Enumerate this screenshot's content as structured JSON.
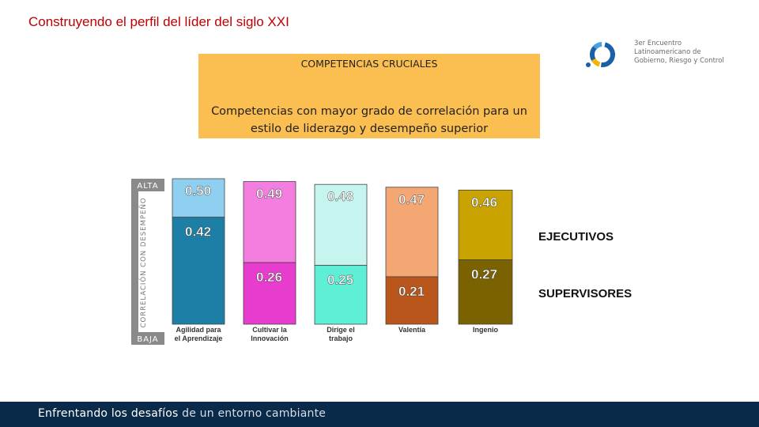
{
  "page": {
    "title": "Construyendo el perfil del líder del siglo XXI",
    "logo": {
      "lines": [
        "3er Encuentro",
        "Latinoamericano de",
        "Gobierno, Riesgo y Control"
      ]
    },
    "banner": {
      "heading": "COMPETENCIAS CRUCIALES",
      "body": "Competencias con mayor grado de correlación para un estilo de liderazgo y desempeño superior"
    },
    "footer": {
      "bold": "Enfrentando los desafíos",
      "light": " de un entorno cambiante"
    }
  },
  "chart_data": {
    "type": "bar",
    "axis": {
      "label": "CORRELACIÓN CON DESEMPEÑO",
      "top": "ALTA",
      "bottom": "BAJA"
    },
    "categories": [
      {
        "label": [
          "Agilidad para",
          "el Aprendizaje"
        ],
        "executive": 0.5,
        "supervisor": 0.42,
        "colors": {
          "executive": "#8fd0f0",
          "supervisor": "#1e7fa6"
        }
      },
      {
        "label": [
          "Cultivar la",
          "Innovación"
        ],
        "executive": 0.49,
        "supervisor": 0.26,
        "colors": {
          "executive": "#f47ee0",
          "supervisor": "#e83ccf"
        }
      },
      {
        "label": [
          "Dirige el",
          "trabajo"
        ],
        "executive": 0.48,
        "supervisor": 0.25,
        "colors": {
          "executive": "#c5f5ee",
          "supervisor": "#5fefd6"
        }
      },
      {
        "label": [
          "Valentía"
        ],
        "executive": 0.47,
        "supervisor": 0.21,
        "colors": {
          "executive": "#f4a773",
          "supervisor": "#b8561b"
        }
      },
      {
        "label": [
          "Ingenio"
        ],
        "executive": 0.46,
        "supervisor": 0.27,
        "colors": {
          "executive": "#c9a300",
          "supervisor": "#7a6200"
        }
      }
    ],
    "series": [
      {
        "name": "EJECUTIVOS",
        "key": "executive"
      },
      {
        "name": "SUPERVISORES",
        "key": "supervisor"
      }
    ]
  }
}
